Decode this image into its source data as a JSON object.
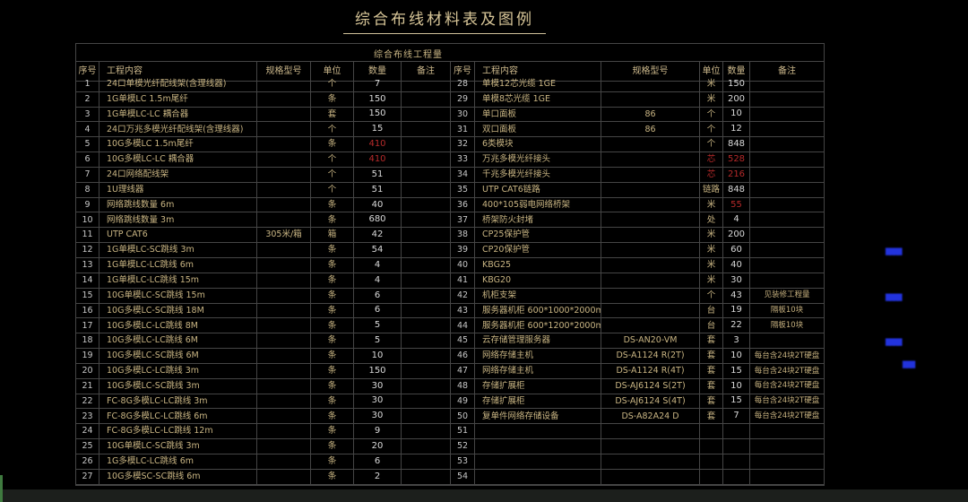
{
  "page": {
    "title": "综合布线材料表及图例",
    "table_subtitle": "综合布线工程量"
  },
  "colors": {
    "background": "#000000",
    "text_tan": "#c9b583",
    "text_number": "#d9d9d9",
    "highlight_red": "#b52a2a",
    "annotation_blue": "#2233dd",
    "grid_line": "#454545",
    "title_tan": "#d8c698"
  },
  "headers": [
    "序号",
    "工程内容",
    "规格型号",
    "单位",
    "数量",
    "备注"
  ],
  "left_rows": [
    {
      "no": "1",
      "content": "24口单模光纤配线架(含理线器)",
      "spec": "",
      "unit": "个",
      "qty": "7",
      "note": ""
    },
    {
      "no": "2",
      "content": "1G单模LC 1.5m尾纤",
      "spec": "",
      "unit": "条",
      "qty": "150",
      "note": ""
    },
    {
      "no": "3",
      "content": "1G单模LC-LC  耦合器",
      "spec": "",
      "unit": "套",
      "qty": "150",
      "note": ""
    },
    {
      "no": "4",
      "content": "24口万兆多模光纤配线架(含理线器)",
      "spec": "",
      "unit": "个",
      "qty": "15",
      "note": ""
    },
    {
      "no": "5",
      "content": "10G多模LC 1.5m尾纤",
      "spec": "",
      "unit": "条",
      "qty": "410",
      "note": "",
      "qty_red": true
    },
    {
      "no": "6",
      "content": "10G多模LC-LC  耦合器",
      "spec": "",
      "unit": "个",
      "qty": "410",
      "note": "",
      "qty_red": true
    },
    {
      "no": "7",
      "content": "24口网络配线架",
      "spec": "",
      "unit": "个",
      "qty": "51",
      "note": ""
    },
    {
      "no": "8",
      "content": "1U理线器",
      "spec": "",
      "unit": "个",
      "qty": "51",
      "note": ""
    },
    {
      "no": "9",
      "content": "网络跳线数量 6m",
      "spec": "",
      "unit": "条",
      "qty": "40",
      "note": ""
    },
    {
      "no": "10",
      "content": "网络跳线数量 3m",
      "spec": "",
      "unit": "条",
      "qty": "680",
      "note": ""
    },
    {
      "no": "11",
      "content": "UTP CAT6",
      "spec": "305米/箱",
      "unit": "箱",
      "qty": "42",
      "note": ""
    },
    {
      "no": "12",
      "content": "1G单模LC-SC跳线 3m",
      "spec": "",
      "unit": "条",
      "qty": "54",
      "note": ""
    },
    {
      "no": "13",
      "content": "1G单模LC-LC跳线 6m",
      "spec": "",
      "unit": "条",
      "qty": "4",
      "note": ""
    },
    {
      "no": "14",
      "content": "1G单模LC-LC跳线 15m",
      "spec": "",
      "unit": "条",
      "qty": "4",
      "note": ""
    },
    {
      "no": "15",
      "content": "10G单模LC-SC跳线 15m",
      "spec": "",
      "unit": "条",
      "qty": "6",
      "note": ""
    },
    {
      "no": "16",
      "content": "10G多模LC-SC跳线 18M",
      "spec": "",
      "unit": "条",
      "qty": "6",
      "note": ""
    },
    {
      "no": "17",
      "content": "10G多模LC-LC跳线 8M",
      "spec": "",
      "unit": "条",
      "qty": "5",
      "note": ""
    },
    {
      "no": "18",
      "content": "10G多模LC-LC跳线 6M",
      "spec": "",
      "unit": "条",
      "qty": "5",
      "note": ""
    },
    {
      "no": "19",
      "content": "10G多模LC-SC跳线 6M",
      "spec": "",
      "unit": "条",
      "qty": "10",
      "note": ""
    },
    {
      "no": "20",
      "content": "10G多模LC-LC跳线 3m",
      "spec": "",
      "unit": "条",
      "qty": "150",
      "note": ""
    },
    {
      "no": "21",
      "content": "10G多模LC-SC跳线 3m",
      "spec": "",
      "unit": "条",
      "qty": "30",
      "note": ""
    },
    {
      "no": "22",
      "content": "FC-8G多模LC-LC跳线 3m",
      "spec": "",
      "unit": "条",
      "qty": "30",
      "note": ""
    },
    {
      "no": "23",
      "content": "FC-8G多模LC-LC跳线 6m",
      "spec": "",
      "unit": "条",
      "qty": "30",
      "note": ""
    },
    {
      "no": "24",
      "content": "FC-8G多模LC-LC跳线 12m",
      "spec": "",
      "unit": "条",
      "qty": "9",
      "note": ""
    },
    {
      "no": "25",
      "content": "10G单模LC-SC跳线 3m",
      "spec": "",
      "unit": "条",
      "qty": "20",
      "note": ""
    },
    {
      "no": "26",
      "content": "1G多模LC-LC跳线 6m",
      "spec": "",
      "unit": "条",
      "qty": "6",
      "note": ""
    },
    {
      "no": "27",
      "content": "10G多模SC-SC跳线 6m",
      "spec": "",
      "unit": "条",
      "qty": "2",
      "note": ""
    }
  ],
  "right_rows": [
    {
      "no": "28",
      "content": "单模12芯光缆 1GE",
      "spec": "",
      "unit": "米",
      "qty": "150",
      "note": ""
    },
    {
      "no": "29",
      "content": "单模8芯光缆 1GE",
      "spec": "",
      "unit": "米",
      "qty": "200",
      "note": ""
    },
    {
      "no": "30",
      "content": "单口面板",
      "spec": "86",
      "unit": "个",
      "qty": "10",
      "note": ""
    },
    {
      "no": "31",
      "content": "双口面板",
      "spec": "86",
      "unit": "个",
      "qty": "12",
      "note": ""
    },
    {
      "no": "32",
      "content": "6类模块",
      "spec": "",
      "unit": "个",
      "qty": "848",
      "note": ""
    },
    {
      "no": "33",
      "content": "万兆多模光纤接头",
      "spec": "",
      "unit": "芯",
      "qty": "528",
      "note": "",
      "unit_red": true,
      "qty_red": true
    },
    {
      "no": "34",
      "content": "千兆多模光纤接头",
      "spec": "",
      "unit": "芯",
      "qty": "216",
      "note": "",
      "unit_red": true,
      "qty_red": true
    },
    {
      "no": "35",
      "content": "UTP CAT6链路",
      "spec": "",
      "unit": "链路",
      "qty": "848",
      "note": ""
    },
    {
      "no": "36",
      "content": "400*105弱电网络桥架",
      "spec": "",
      "unit": "米",
      "qty": "55",
      "note": "",
      "qty_red": true
    },
    {
      "no": "37",
      "content": "桥架防火封堵",
      "spec": "",
      "unit": "处",
      "qty": "4",
      "note": ""
    },
    {
      "no": "38",
      "content": "CP25保护管",
      "spec": "",
      "unit": "米",
      "qty": "200",
      "note": ""
    },
    {
      "no": "39",
      "content": "CP20保护管",
      "spec": "",
      "unit": "米",
      "qty": "60",
      "note": ""
    },
    {
      "no": "40",
      "content": "KBG25",
      "spec": "",
      "unit": "米",
      "qty": "40",
      "note": ""
    },
    {
      "no": "41",
      "content": "KBG20",
      "spec": "",
      "unit": "米",
      "qty": "30",
      "note": ""
    },
    {
      "no": "42",
      "content": "机柜支架",
      "spec": "",
      "unit": "个",
      "qty": "43",
      "note": "见装修工程量"
    },
    {
      "no": "43",
      "content": "服务器机柜  600*1000*2000mm",
      "spec": "",
      "unit": "台",
      "qty": "19",
      "note": "隔板10块"
    },
    {
      "no": "44",
      "content": "服务器机柜  600*1200*2000mm",
      "spec": "",
      "unit": "台",
      "qty": "22",
      "note": "隔板10块"
    },
    {
      "no": "45",
      "content": "云存储管理服务器",
      "spec": "DS-AN20-VM",
      "unit": "套",
      "qty": "3",
      "note": ""
    },
    {
      "no": "46",
      "content": "网络存储主机",
      "spec": "DS-A1124 R(2T)",
      "unit": "套",
      "qty": "10",
      "note": "每台含24块2T硬盘"
    },
    {
      "no": "47",
      "content": "网络存储主机",
      "spec": "DS-A1124 R(4T)",
      "unit": "套",
      "qty": "15",
      "note": "每台含24块2T硬盘"
    },
    {
      "no": "48",
      "content": "存储扩展柜",
      "spec": "DS-AJ6124 S(2T)",
      "unit": "套",
      "qty": "10",
      "note": "每台含24块2T硬盘"
    },
    {
      "no": "49",
      "content": "存储扩展柜",
      "spec": "DS-AJ6124 S(4T)",
      "unit": "套",
      "qty": "15",
      "note": "每台含24块2T硬盘"
    },
    {
      "no": "50",
      "content": "复单件网络存储设备",
      "spec": "DS-A82A24 D",
      "unit": "套",
      "qty": "7",
      "note": "每台含24块2T硬盘"
    },
    {
      "no": "51",
      "content": "",
      "spec": "",
      "unit": "",
      "qty": "",
      "note": ""
    },
    {
      "no": "52",
      "content": "",
      "spec": "",
      "unit": "",
      "qty": "",
      "note": ""
    },
    {
      "no": "53",
      "content": "",
      "spec": "",
      "unit": "",
      "qty": "",
      "note": ""
    },
    {
      "no": "54",
      "content": "",
      "spec": "",
      "unit": "",
      "qty": "",
      "note": ""
    }
  ],
  "annotations": {
    "color": "#2233dd",
    "items": [
      {
        "text": "████"
      },
      {
        "text": "████"
      },
      {
        "text": "████"
      },
      {
        "text": "███"
      }
    ]
  }
}
